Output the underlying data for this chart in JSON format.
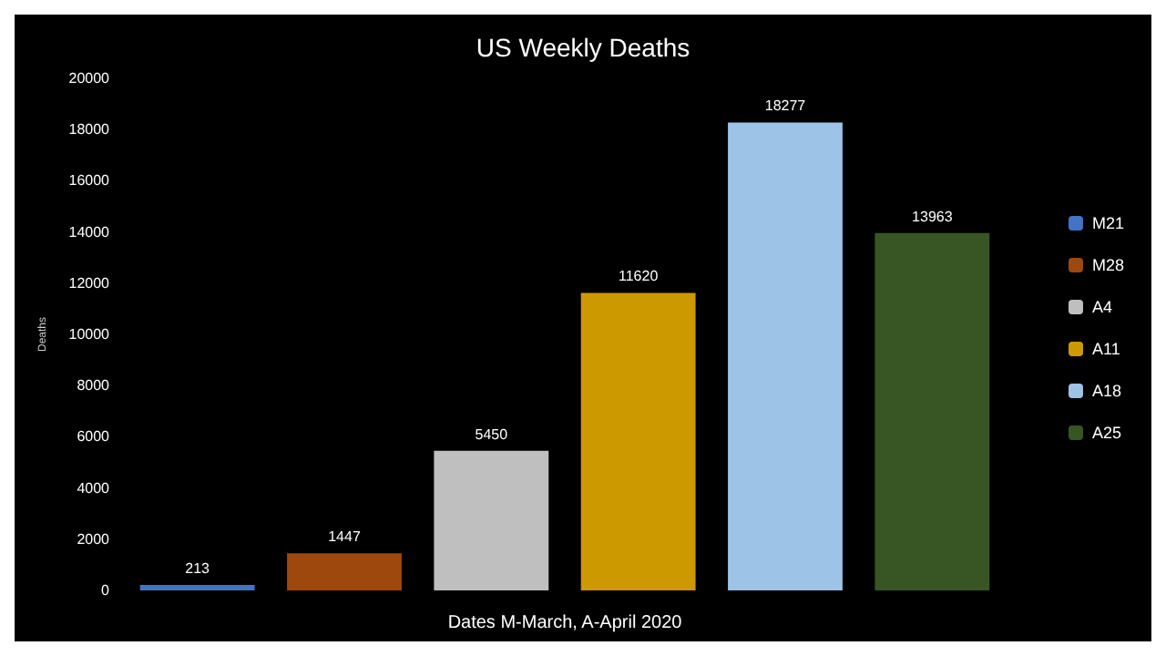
{
  "chart_data": {
    "type": "bar",
    "title": "US Weekly Deaths",
    "xlabel": "Dates M-March, A-April 2020",
    "ylabel": "Deaths",
    "categories": [
      null,
      null,
      null,
      null,
      null,
      null
    ],
    "stacked": true,
    "series": [
      {
        "name": "M21",
        "color": "#4472c4",
        "values": [
          213,
          null,
          null,
          null,
          null,
          null
        ]
      },
      {
        "name": "M28",
        "color": "#9e480e",
        "values": [
          null,
          1447,
          null,
          null,
          null,
          null
        ]
      },
      {
        "name": "A4",
        "color": "#bfbfbf",
        "values": [
          null,
          null,
          5450,
          null,
          null,
          null
        ]
      },
      {
        "name": "A11",
        "color": "#cc9900",
        "values": [
          null,
          null,
          null,
          11620,
          null,
          null
        ]
      },
      {
        "name": "A18",
        "color": "#9dc3e6",
        "values": [
          null,
          null,
          null,
          null,
          18277,
          null
        ]
      },
      {
        "name": "A25",
        "color": "#375623",
        "values": [
          null,
          null,
          null,
          null,
          null,
          13963
        ]
      }
    ],
    "ylim": [
      0,
      20000
    ],
    "yticks": [
      0,
      2000,
      4000,
      6000,
      8000,
      10000,
      12000,
      14000,
      16000,
      18000,
      20000
    ],
    "grid": false,
    "legend": "right",
    "data_labels": true
  }
}
